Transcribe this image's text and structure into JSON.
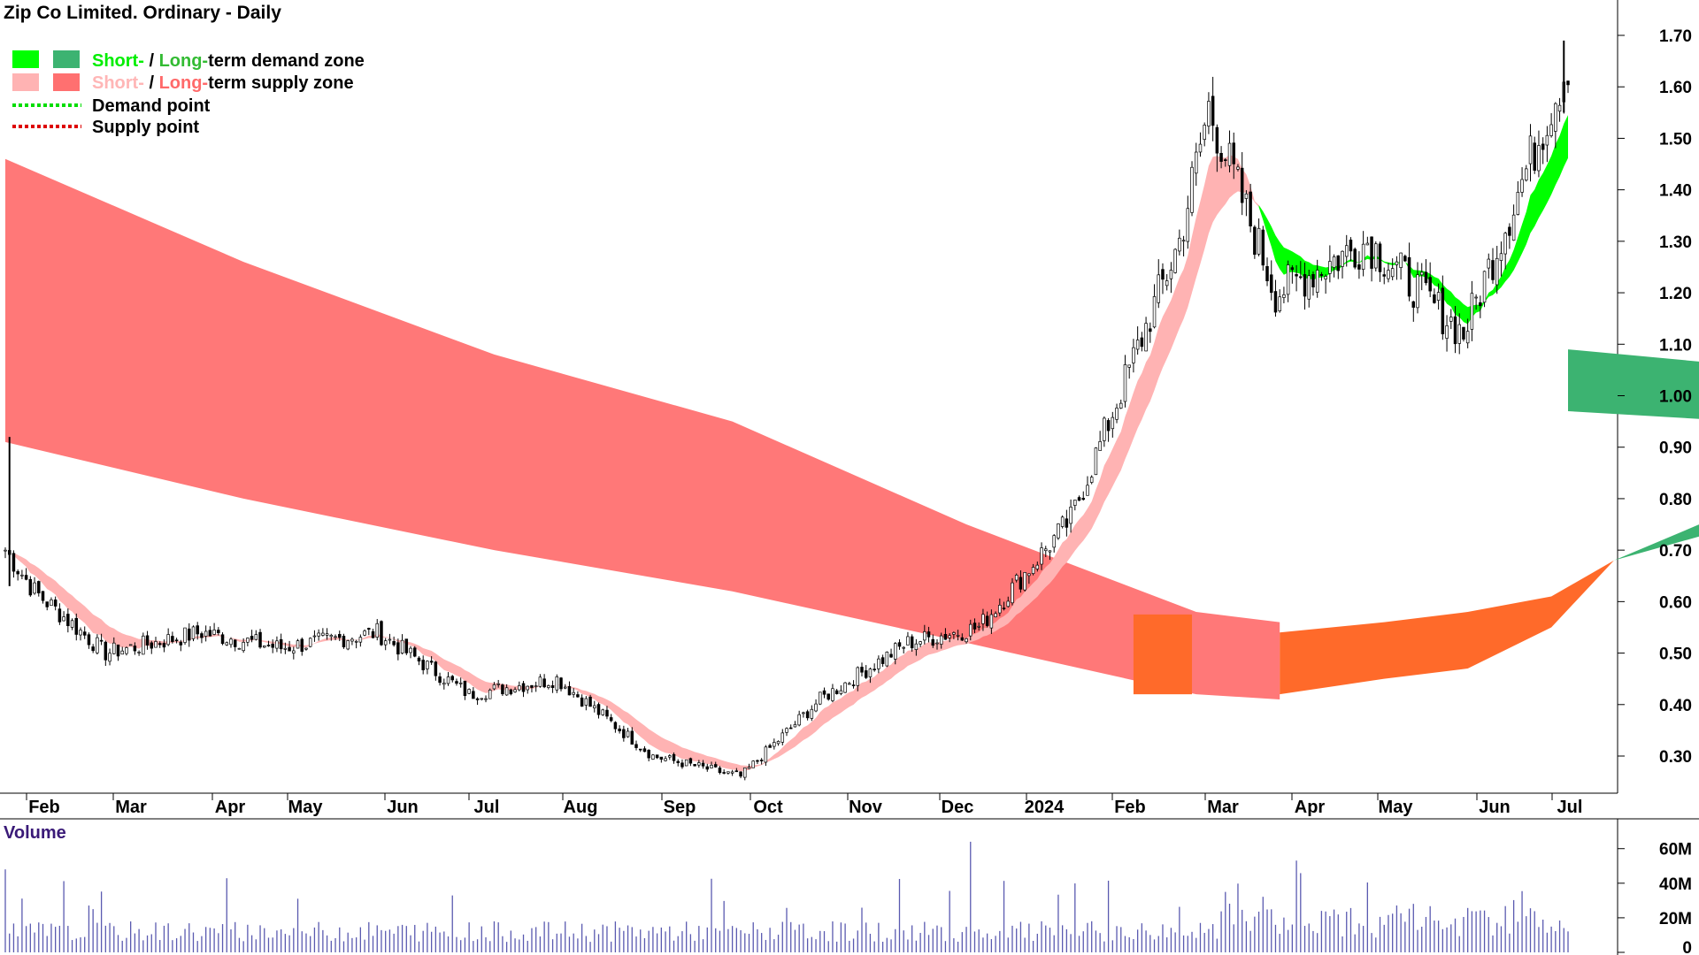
{
  "chart_data": {
    "type": "candlestick",
    "title": "Zip Co Limited. Ordinary - Daily",
    "legend": {
      "placement": "top-left",
      "items": [
        {
          "parts": [
            "Short-",
            " / ",
            "Long-",
            "term demand zone"
          ],
          "colors": [
            "#00ee00",
            "#000000",
            "#33cc33",
            "#000000"
          ],
          "swatches": [
            "#00ff00",
            "#3cb371"
          ]
        },
        {
          "parts": [
            "Short-",
            " / ",
            "Long-",
            "term supply zone"
          ],
          "colors": [
            "#ffb6b6",
            "#000000",
            "#ff6a6a",
            "#000000"
          ],
          "swatches": [
            "#ffb3b3",
            "#ff7070"
          ]
        },
        {
          "label": "Demand point",
          "line_color": "#00dd00"
        },
        {
          "label": "Supply point",
          "line_color": "#dd0000"
        }
      ]
    },
    "y_axis": {
      "ticks": [
        "1.70",
        "1.60",
        "1.50",
        "1.40",
        "1.30",
        "1.20",
        "1.10",
        "1.00",
        "0.90",
        "0.80",
        "0.70",
        "0.60",
        "0.50",
        "0.40",
        "0.30"
      ],
      "range": [
        0.22,
        1.76
      ]
    },
    "x_axis": {
      "ticks": [
        "Feb",
        "Mar",
        "Apr",
        "May",
        "Jun",
        "Jul",
        "Aug",
        "Sep",
        "Oct",
        "Nov",
        "Dec",
        "2024",
        "Feb",
        "Mar",
        "Apr",
        "May",
        "Jun",
        "Jul"
      ]
    },
    "volume_axis": {
      "label": "Volume",
      "ticks": [
        "60M",
        "40M",
        "20M",
        "0"
      ],
      "range": [
        0,
        66
      ]
    },
    "price_series": [
      {
        "date": "Jan",
        "close": 0.7,
        "high": 0.92,
        "low": 0.63
      },
      {
        "date": "Feb",
        "close": 0.62
      },
      {
        "date": "Mar",
        "close": 0.5
      },
      {
        "date": "Apr",
        "close": 0.54
      },
      {
        "date": "May",
        "close": 0.51
      },
      {
        "date": "Jun",
        "close": 0.54
      },
      {
        "date": "Jul",
        "close": 0.42
      },
      {
        "date": "Aug",
        "close": 0.45
      },
      {
        "date": "Sep",
        "close": 0.3
      },
      {
        "date": "Oct",
        "close": 0.26
      },
      {
        "date": "Nov",
        "close": 0.41
      },
      {
        "date": "Dec",
        "close": 0.52
      },
      {
        "date": "2024",
        "close": 0.55
      },
      {
        "date": "Feb",
        "close": 0.76
      },
      {
        "date": "Mar",
        "close": 1.3
      },
      {
        "date": "Mar-end",
        "close": 1.56,
        "high": 1.59
      },
      {
        "date": "Apr",
        "close": 1.2
      },
      {
        "date": "May",
        "close": 1.3
      },
      {
        "date": "Jun",
        "close": 1.12
      },
      {
        "date": "Jul",
        "close": 1.65,
        "high": 1.69
      }
    ],
    "long_term_supply_zone": [
      {
        "date": "Jan",
        "upper": 1.46,
        "lower": 0.91
      },
      {
        "date": "Mar",
        "upper": 1.26,
        "lower": 0.8
      },
      {
        "date": "May",
        "upper": 1.08,
        "lower": 0.7
      },
      {
        "date": "Jul",
        "upper": 0.95,
        "lower": 0.62
      },
      {
        "date": "Sep",
        "upper": 0.75,
        "lower": 0.52
      },
      {
        "date": "Nov",
        "upper": 0.58,
        "lower": 0.42
      },
      {
        "date": "Dec",
        "upper": 0.56,
        "lower": 0.41
      }
    ],
    "long_term_demand_zone": [
      {
        "date": "Feb 2024",
        "upper": 0.68,
        "lower": 0.68
      },
      {
        "date": "Mar 2024",
        "upper": 0.8,
        "lower": 0.76
      },
      {
        "date": "Apr 2024",
        "upper": 0.9,
        "lower": 0.84
      },
      {
        "date": "May 2024",
        "upper": 0.98,
        "lower": 0.9
      },
      {
        "date": "Jul 2024",
        "upper": 1.09,
        "lower": 0.97
      }
    ],
    "short_term_demand_zone_peak": {
      "date": "Apr 2024",
      "upper": 1.29,
      "lower": 1.18
    },
    "volume_peak_millions": 64
  }
}
